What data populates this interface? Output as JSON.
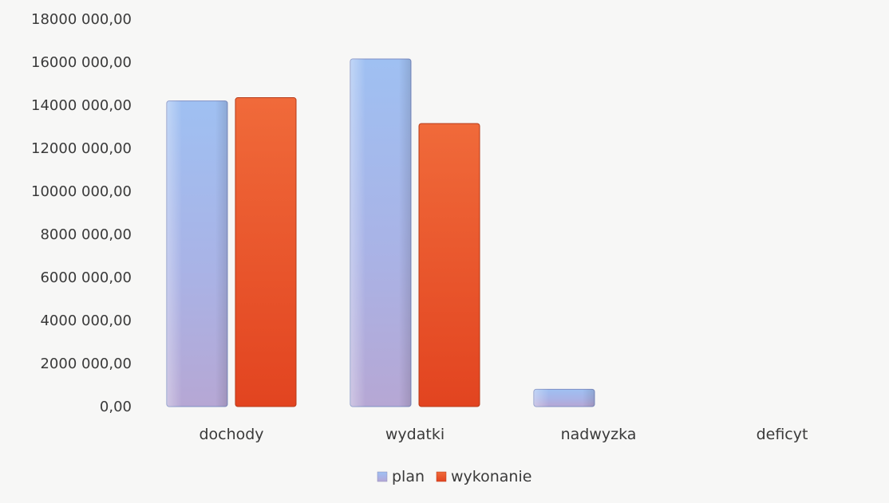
{
  "chart_data": {
    "type": "bar",
    "categories": [
      "dochody",
      "wydatki",
      "nadwyzka",
      "deficyt"
    ],
    "series": [
      {
        "name": "plan",
        "values": [
          14200000,
          16150000,
          800000,
          0
        ],
        "color": "#8fa8e0"
      },
      {
        "name": "wykonanie",
        "values": [
          14350000,
          13150000,
          0,
          0
        ],
        "color": "#e8542c"
      }
    ],
    "ylim": [
      0,
      18000000
    ],
    "yticks": [
      0,
      2000000,
      4000000,
      6000000,
      8000000,
      10000000,
      12000000,
      14000000,
      16000000,
      18000000
    ],
    "ytick_labels": [
      "0,00",
      "2000 000,00",
      "4000 000,00",
      "6000 000,00",
      "8000 000,00",
      "10000 000,00",
      "12000 000,00",
      "14000 000,00",
      "16000 000,00",
      "18000 000,00"
    ],
    "grid": false,
    "legend": "bottom-center",
    "title": "",
    "xlabel": "",
    "ylabel": ""
  },
  "legend": {
    "plan_label": "plan",
    "wykonanie_label": "wykonanie"
  }
}
